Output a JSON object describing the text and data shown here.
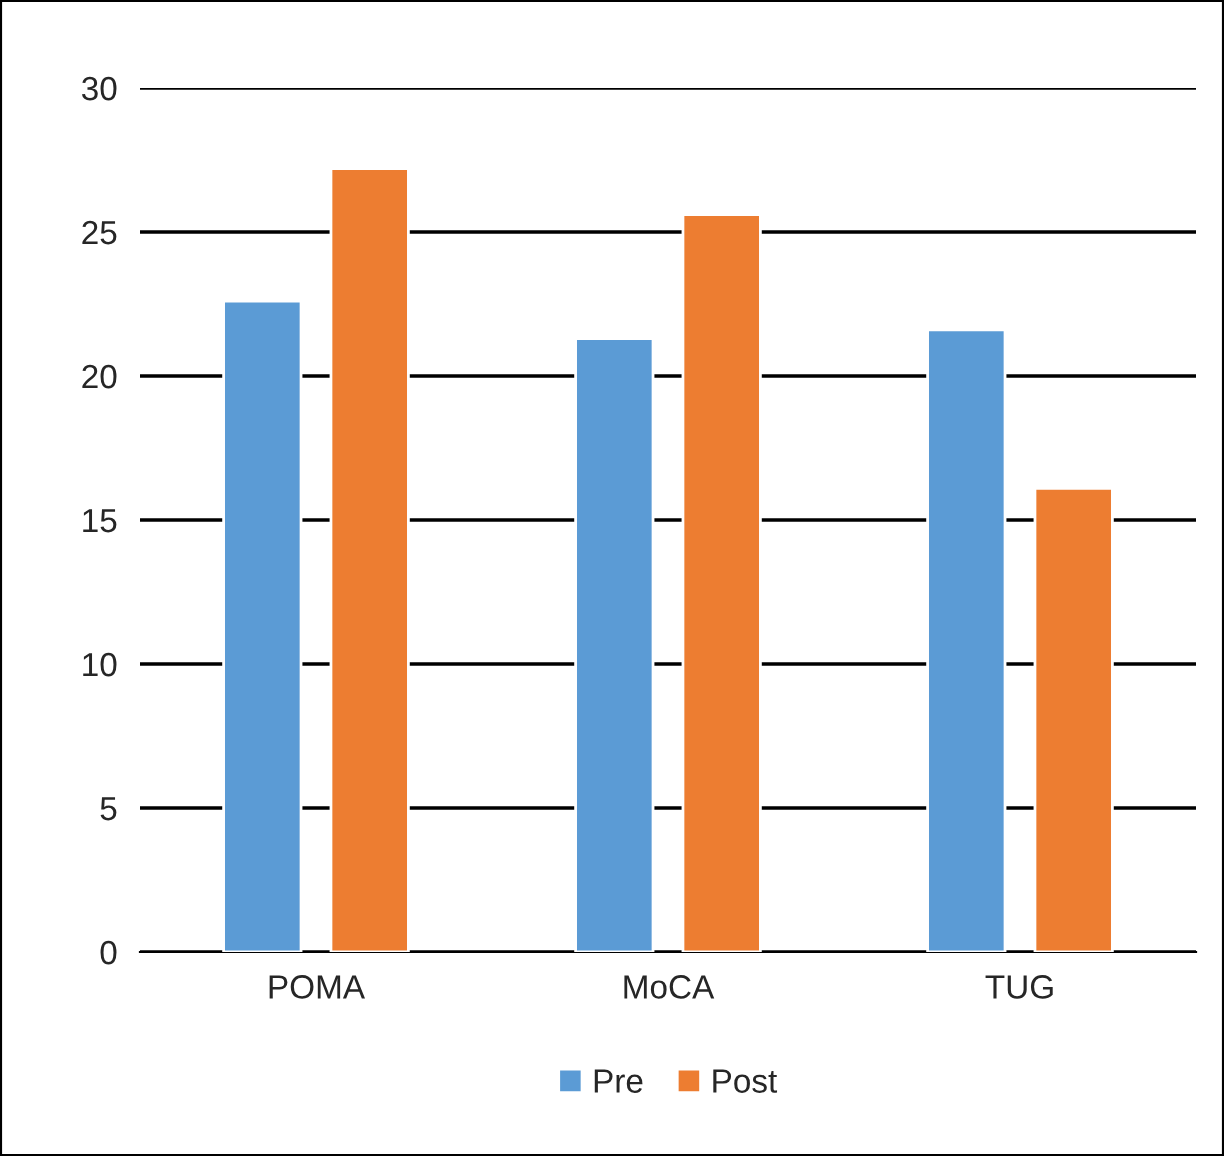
{
  "chart_data": {
    "type": "bar",
    "categories": [
      "POMA",
      "MoCA",
      "TUG"
    ],
    "series": [
      {
        "name": "Pre",
        "color": "#5b9bd5",
        "values": [
          22.6,
          21.3,
          21.6
        ]
      },
      {
        "name": "Post",
        "color": "#ed7d31",
        "values": [
          27.2,
          25.6,
          16.1
        ]
      }
    ],
    "ylim": [
      0,
      30
    ],
    "yticks": [
      0,
      5,
      10,
      15,
      20,
      25,
      30
    ],
    "grid": "y",
    "legend": "bottom"
  }
}
